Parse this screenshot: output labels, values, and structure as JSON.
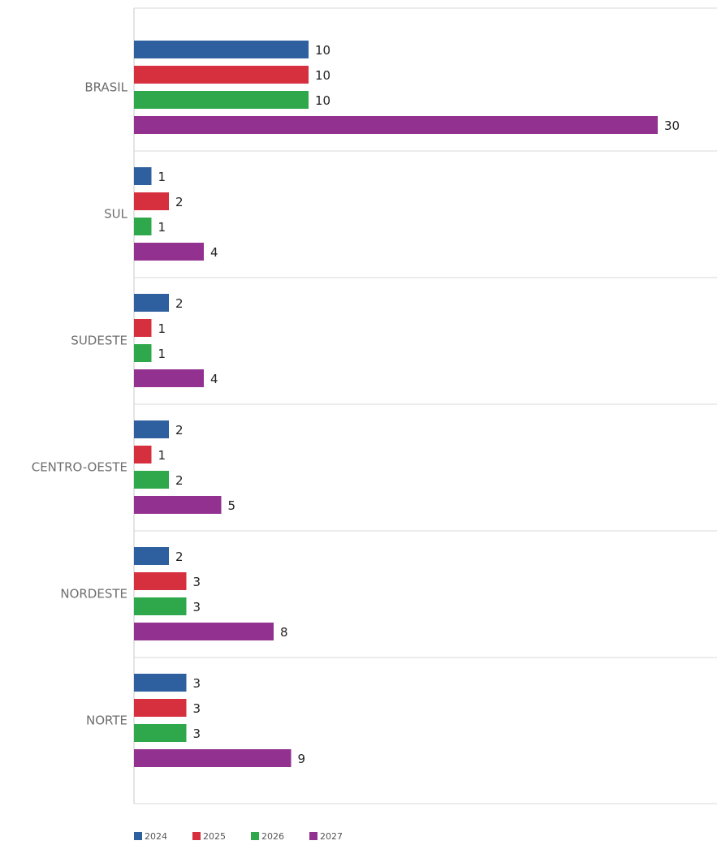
{
  "chart_data": {
    "type": "bar",
    "orientation": "horizontal",
    "categories": [
      "BRASIL",
      "SUL",
      "SUDESTE",
      "CENTRO-OESTE",
      "NORDESTE",
      "NORTE"
    ],
    "series": [
      {
        "name": "2024",
        "color": "#2e5f9e",
        "values": [
          10,
          1,
          2,
          2,
          2,
          3
        ]
      },
      {
        "name": "2025",
        "color": "#d62f3e",
        "values": [
          10,
          2,
          1,
          1,
          3,
          3
        ]
      },
      {
        "name": "2026",
        "color": "#2ea84a",
        "values": [
          10,
          1,
          1,
          2,
          3,
          3
        ]
      },
      {
        "name": "2027",
        "color": "#933190",
        "values": [
          30,
          4,
          4,
          5,
          8,
          9
        ]
      }
    ],
    "xlim": [
      0,
      33
    ],
    "grid": false,
    "legend_position": "bottom-left"
  }
}
